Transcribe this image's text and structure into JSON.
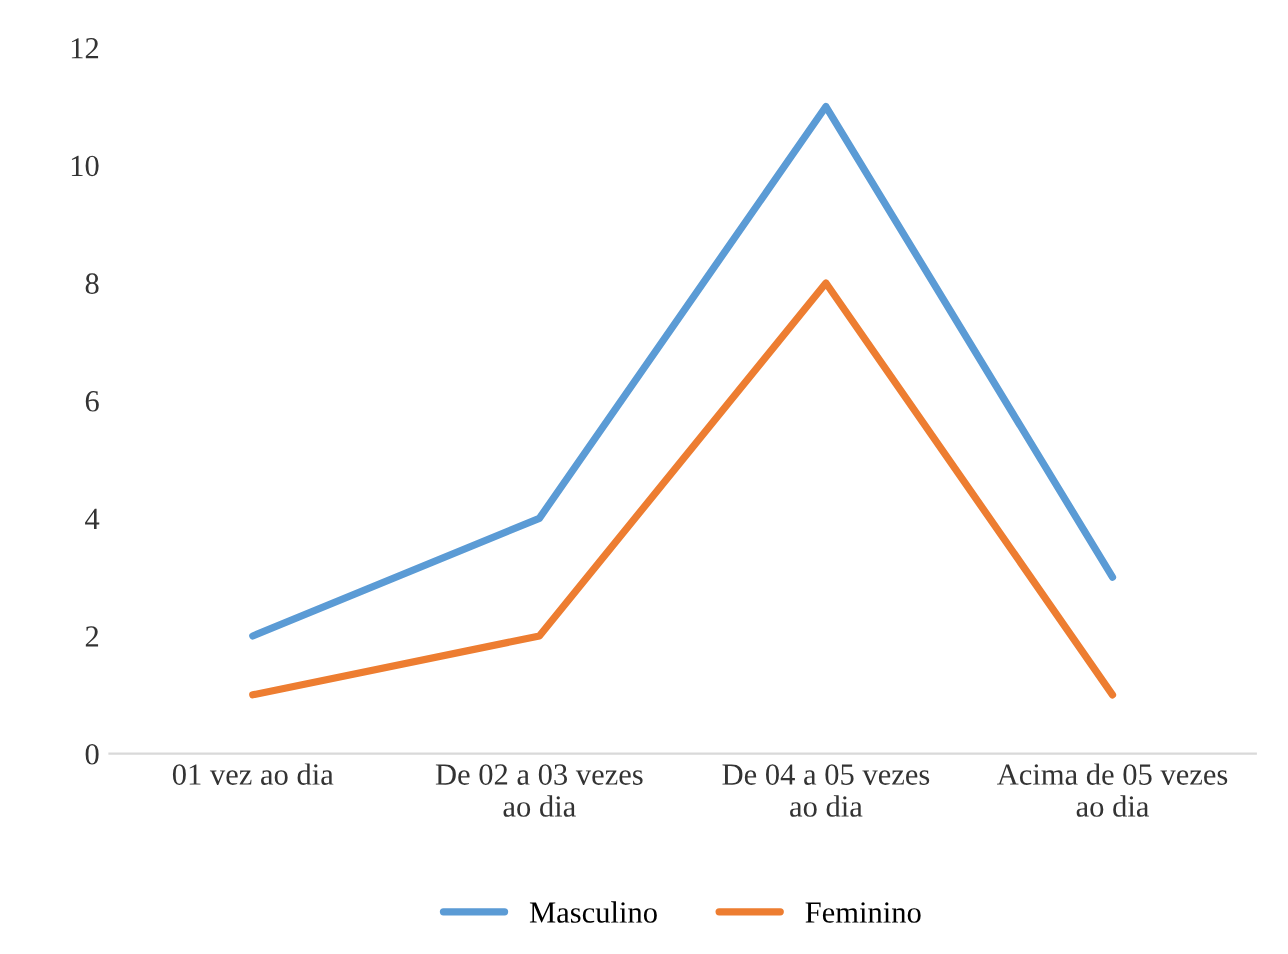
{
  "chart_data": {
    "type": "line",
    "categories": [
      "01 vez ao dia",
      "De 02 a 03 vezes\nao dia",
      "De 04 a 05 vezes\nao dia",
      "Acima de 05 vezes\nao dia"
    ],
    "series": [
      {
        "name": "Masculino",
        "color": "#5b9bd5",
        "values": [
          2,
          4,
          11,
          3
        ]
      },
      {
        "name": "Feminino",
        "color": "#ed7d31",
        "values": [
          1,
          2,
          8,
          1
        ]
      }
    ],
    "ylim": [
      0,
      12
    ],
    "yticks": [
      0,
      2,
      4,
      6,
      8,
      10,
      12
    ],
    "grid": false,
    "legend": "bottom",
    "marker": "none",
    "line_style": "solid"
  }
}
